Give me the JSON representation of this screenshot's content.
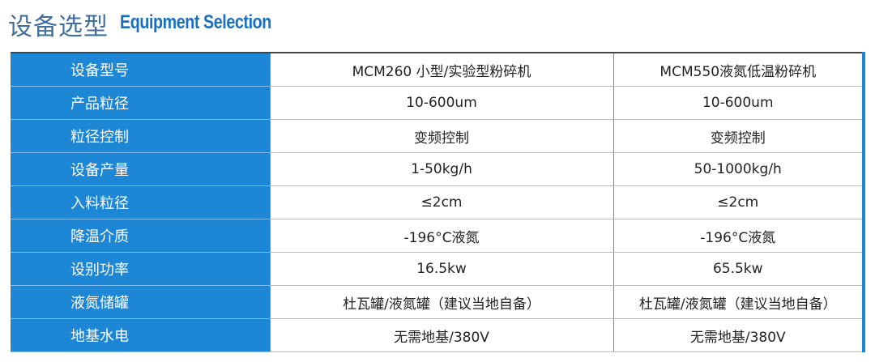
{
  "header": {
    "title": "设备选型",
    "subtitle": "Equipment Selection"
  },
  "table": {
    "rows": [
      [
        "设备型号",
        "MCM260 小型/实验型粉碎机",
        "MCM550液氮低温粉碎机"
      ],
      [
        "产品粒径",
        "10-600um",
        "10-600um"
      ],
      [
        "粒径控制",
        "变频控制",
        "变频控制"
      ],
      [
        "设备产量",
        "1-50kg/h",
        "50-1000kg/h"
      ],
      [
        "入料粒径",
        "≤2cm",
        "≤2cm"
      ],
      [
        "降温介质",
        "-196°C液氮",
        "-196°C液氮"
      ],
      [
        "设别功率",
        "16.5kw",
        "65.5kw"
      ],
      [
        "液氮储罐",
        "杜瓦罐/液氮罐（建议当地自备）",
        "杜瓦罐/液氮罐（建议当地自备）"
      ],
      [
        "地基水电",
        "无需地基/380V",
        "无需地基/380V"
      ]
    ]
  }
}
